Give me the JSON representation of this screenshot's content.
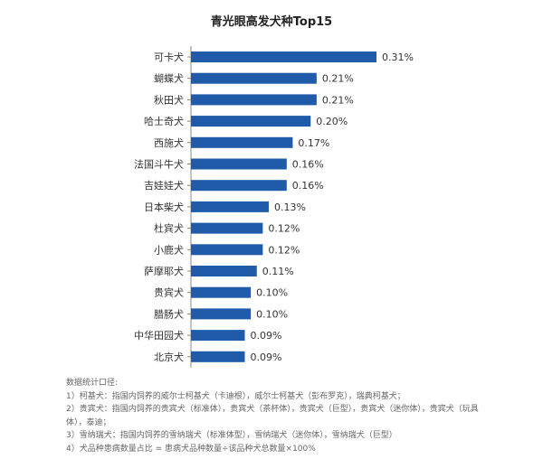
{
  "chart_data": {
    "type": "bar",
    "orientation": "horizontal",
    "title": "青光眼高发犬种Top15",
    "xlabel": "",
    "ylabel": "",
    "categories": [
      "可卡犬",
      "蝴蝶犬",
      "秋田犬",
      "哈士奇犬",
      "西施犬",
      "法国斗牛犬",
      "吉娃娃犬",
      "日本柴犬",
      "杜宾犬",
      "小鹿犬",
      "萨摩耶犬",
      "贵宾犬",
      "腊肠犬",
      "中华田园犬",
      "北京犬"
    ],
    "values": [
      0.31,
      0.21,
      0.21,
      0.2,
      0.17,
      0.16,
      0.16,
      0.13,
      0.12,
      0.12,
      0.11,
      0.1,
      0.1,
      0.09,
      0.09
    ],
    "value_labels": [
      "0.31%",
      "0.21%",
      "0.21%",
      "0.20%",
      "0.17%",
      "0.16%",
      "0.16%",
      "0.13%",
      "0.12%",
      "0.12%",
      "0.11%",
      "0.10%",
      "0.10%",
      "0.09%",
      "0.09%"
    ],
    "unit": "%",
    "xlim": [
      0,
      0.31
    ],
    "grid": false,
    "bar_color": "#1f5ba8"
  },
  "notes": {
    "heading": "数据统计口径:",
    "lines": [
      "1）柯基犬：指国内饲养的威尔士柯基犬（卡迪根），威尔士柯基犬（彭布罗克），瑞典柯基犬；",
      "2）贵宾犬：指国内饲养的贵宾犬（标准体），贵宾犬（茶杯体），贵宾犬（巨型），贵宾犬（迷你体），贵宾犬（玩具体），泰迪；",
      "3）雪纳瑞犬：指国内饲养的雪纳瑞犬（标准体型），雪纳瑞犬（迷你体），雪纳瑞犬（巨型）",
      "4）犬品种患病数量占比 = 患病犬品种数量÷该品种犬总数量×100%"
    ]
  }
}
